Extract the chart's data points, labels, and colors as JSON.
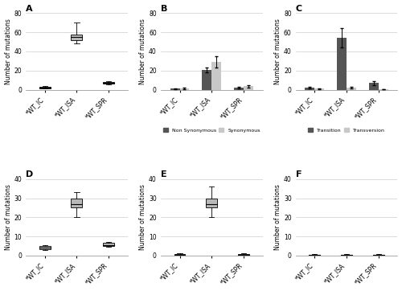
{
  "panel_A": {
    "title": "A",
    "ylabel": "Number of mutations",
    "ylim": [
      0,
      80
    ],
    "yticks": [
      0,
      20,
      40,
      60,
      80
    ],
    "categories": [
      "*WT_IC",
      "*WT_ISA",
      "*WT_SPR"
    ],
    "box_data": [
      {
        "median": 2,
        "q1": 1.5,
        "q3": 3,
        "min": 1,
        "max": 3.5
      },
      {
        "median": 55,
        "q1": 52,
        "q3": 58,
        "min": 48,
        "max": 70
      },
      {
        "median": 7,
        "q1": 6,
        "q3": 8,
        "min": 5.5,
        "max": 8.5
      }
    ],
    "box_color": "#b8b8b8"
  },
  "panel_B": {
    "title": "B",
    "ylabel": "Number of mutations",
    "ylim": [
      0,
      80
    ],
    "yticks": [
      0,
      20,
      40,
      60,
      80
    ],
    "categories": [
      "*WT_IC",
      "*WT_ISA",
      "*WT_SPR"
    ],
    "nonsyn_means": [
      1,
      21,
      2
    ],
    "nonsyn_errs": [
      0.5,
      2.5,
      0.8
    ],
    "syn_means": [
      1.5,
      29,
      3.5
    ],
    "syn_errs": [
      0.8,
      6,
      1.2
    ],
    "color_nonsyn": "#555555",
    "color_syn": "#c8c8c8",
    "legend_nonsyn": "Non Synonymous",
    "legend_syn": "Synonymous"
  },
  "panel_C": {
    "title": "C",
    "ylabel": "Number of mutations",
    "ylim": [
      0,
      80
    ],
    "yticks": [
      0,
      20,
      40,
      60,
      80
    ],
    "categories": [
      "*WT_IC",
      "*WT_ISA",
      "*WT_SPR"
    ],
    "trans_means": [
      2,
      54,
      7
    ],
    "trans_errs": [
      1,
      10,
      2
    ],
    "transv_means": [
      1,
      2,
      0.5
    ],
    "transv_errs": [
      0.5,
      1,
      0.3
    ],
    "color_trans": "#555555",
    "color_transv": "#c8c8c8",
    "legend_trans": "Transition",
    "legend_transv": "Transversion"
  },
  "panel_D": {
    "title": "D",
    "ylabel": "Number of mutations",
    "ylim": [
      0,
      40
    ],
    "yticks": [
      0,
      10,
      20,
      30,
      40
    ],
    "categories": [
      "*WT_IC",
      "*WT_ISA",
      "*WT_SPR"
    ],
    "box_data": [
      {
        "median": 4,
        "q1": 3.5,
        "q3": 5,
        "min": 3,
        "max": 5.5
      },
      {
        "median": 27,
        "q1": 25,
        "q3": 30,
        "min": 20,
        "max": 33
      },
      {
        "median": 5.5,
        "q1": 5,
        "q3": 6.5,
        "min": 4.5,
        "max": 7
      }
    ],
    "box_color": "#b8b8b8"
  },
  "panel_E": {
    "title": "E",
    "ylabel": "Number of mutations",
    "ylim": [
      0,
      40
    ],
    "yticks": [
      0,
      10,
      20,
      30,
      40
    ],
    "categories": [
      "*WT_IC",
      "*WT_ISA",
      "*WT_SPR"
    ],
    "box_data": [
      {
        "median": 0.5,
        "q1": 0.3,
        "q3": 0.8,
        "min": 0.1,
        "max": 1.2
      },
      {
        "median": 27,
        "q1": 25,
        "q3": 30,
        "min": 20,
        "max": 36
      },
      {
        "median": 0.5,
        "q1": 0.3,
        "q3": 0.8,
        "min": 0.1,
        "max": 1.2
      }
    ],
    "box_color": "#b8b8b8"
  },
  "panel_F": {
    "title": "F",
    "ylabel": "Number of mutations",
    "ylim": [
      0,
      40
    ],
    "yticks": [
      0,
      10,
      20,
      30,
      40
    ],
    "categories": [
      "*WT_IC",
      "*WT_ISA",
      "*WT_SPR"
    ],
    "box_data": [
      {
        "median": 0.4,
        "q1": 0.2,
        "q3": 0.6,
        "min": 0.1,
        "max": 0.8
      },
      {
        "median": 0.4,
        "q1": 0.2,
        "q3": 0.6,
        "min": 0.1,
        "max": 0.8
      },
      {
        "median": 0.4,
        "q1": 0.2,
        "q3": 0.6,
        "min": 0.1,
        "max": 0.8
      }
    ],
    "box_color": "#b8b8b8"
  },
  "background_color": "#ffffff",
  "grid_color": "#cccccc"
}
